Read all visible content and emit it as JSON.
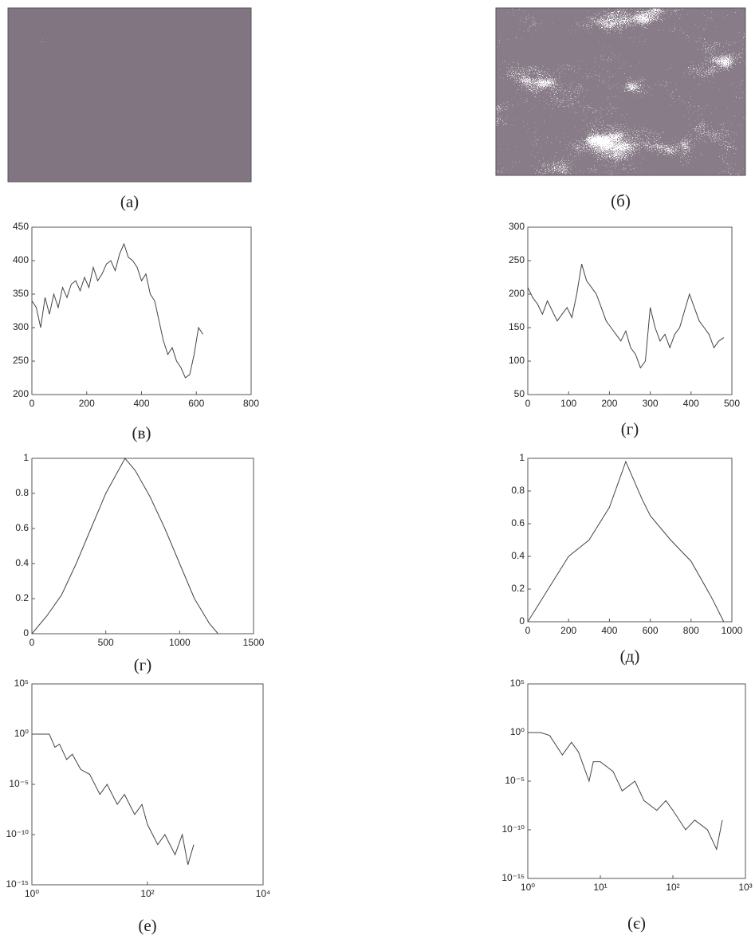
{
  "chart_data": [
    {
      "type": "image",
      "caption": "(а)"
    },
    {
      "type": "image",
      "caption": "(б)"
    },
    {
      "type": "line",
      "caption": "(в)",
      "color": "#444",
      "x": [
        0,
        16,
        32,
        48,
        64,
        80,
        96,
        112,
        128,
        144,
        160,
        176,
        192,
        208,
        224,
        240,
        256,
        272,
        288,
        304,
        320,
        336,
        352,
        368,
        384,
        400,
        416,
        432,
        448,
        464,
        480,
        496,
        512,
        528,
        544,
        560,
        576,
        592,
        608,
        624
      ],
      "values": [
        340,
        330,
        300,
        345,
        320,
        350,
        330,
        360,
        345,
        365,
        370,
        355,
        375,
        360,
        390,
        370,
        380,
        395,
        400,
        385,
        410,
        425,
        405,
        400,
        390,
        370,
        380,
        350,
        340,
        310,
        280,
        260,
        270,
        250,
        240,
        225,
        230,
        260,
        300,
        290
      ],
      "xlim": [
        0,
        800
      ],
      "xticks": [
        0,
        200,
        400,
        600,
        800
      ],
      "ylim": [
        200,
        450
      ],
      "yticks": [
        200,
        250,
        300,
        350,
        400,
        450
      ]
    },
    {
      "type": "line",
      "caption": "(г)",
      "color": "#444",
      "x": [
        0,
        12,
        24,
        36,
        48,
        60,
        72,
        84,
        96,
        108,
        120,
        132,
        144,
        156,
        168,
        180,
        192,
        204,
        216,
        228,
        240,
        252,
        264,
        276,
        288,
        300,
        312,
        324,
        336,
        348,
        360,
        372,
        384,
        396,
        408,
        420,
        432,
        444,
        456,
        468,
        480
      ],
      "values": [
        210,
        195,
        185,
        170,
        190,
        175,
        160,
        170,
        180,
        165,
        200,
        245,
        220,
        210,
        200,
        180,
        160,
        150,
        140,
        130,
        145,
        120,
        110,
        90,
        100,
        180,
        150,
        130,
        140,
        120,
        140,
        150,
        175,
        200,
        180,
        160,
        150,
        140,
        120,
        130,
        135
      ],
      "xlim": [
        0,
        500
      ],
      "xticks": [
        0,
        100,
        200,
        300,
        400,
        500
      ],
      "ylim": [
        50,
        300
      ],
      "yticks": [
        50,
        100,
        150,
        200,
        250,
        300
      ]
    },
    {
      "type": "line",
      "caption": "(г)",
      "color": "#444",
      "x": [
        0,
        100,
        200,
        300,
        400,
        500,
        630,
        700,
        800,
        900,
        1000,
        1100,
        1200,
        1260
      ],
      "values": [
        0,
        0.1,
        0.22,
        0.4,
        0.6,
        0.8,
        1,
        0.93,
        0.78,
        0.6,
        0.4,
        0.2,
        0.06,
        0
      ],
      "xlim": [
        0,
        1500
      ],
      "xticks": [
        0,
        500,
        1000,
        1500
      ],
      "ylim": [
        0,
        1
      ],
      "yticks": [
        0,
        0.2,
        0.4,
        0.6,
        0.8,
        1
      ]
    },
    {
      "type": "line",
      "caption": "(д)",
      "color": "#444",
      "x": [
        0,
        100,
        200,
        300,
        400,
        480,
        560,
        600,
        700,
        800,
        900,
        960
      ],
      "values": [
        0,
        0.2,
        0.4,
        0.5,
        0.7,
        0.98,
        0.75,
        0.65,
        0.5,
        0.37,
        0.15,
        0
      ],
      "xlim": [
        0,
        1000
      ],
      "xticks": [
        0,
        200,
        400,
        600,
        800,
        1000
      ],
      "ylim": [
        0,
        1
      ],
      "yticks": [
        0,
        0.2,
        0.4,
        0.6,
        0.8,
        1
      ]
    },
    {
      "type": "line",
      "caption": "(е)",
      "color": "#444",
      "log_x": true,
      "log_y": true,
      "x": [
        1,
        1.5,
        2,
        2.5,
        3,
        4,
        5,
        7,
        10,
        15,
        20,
        30,
        40,
        60,
        80,
        100,
        150,
        200,
        300,
        400,
        500,
        630
      ],
      "values": [
        1,
        1,
        1,
        0.05,
        0.1,
        0.003,
        0.01,
        0.0003,
        0.0001,
        1e-06,
        1e-05,
        1e-07,
        1e-06,
        1e-08,
        1e-07,
        1e-09,
        1e-11,
        1e-10,
        1e-12,
        1e-10,
        1e-13,
        1e-11
      ],
      "xlim": [
        1,
        10000
      ],
      "xticks": [
        {
          "value": 1,
          "label": "10⁰"
        },
        {
          "value": 100,
          "label": "10²"
        },
        {
          "value": 10000,
          "label": "10⁴"
        }
      ],
      "ylim": [
        1e-15,
        100000
      ],
      "yticks": [
        {
          "value": 1e-15,
          "label": "10⁻¹⁵"
        },
        {
          "value": 1e-10,
          "label": "10⁻¹⁰"
        },
        {
          "value": 1e-05,
          "label": "10⁻⁵"
        },
        {
          "value": 1,
          "label": "10⁰"
        },
        {
          "value": 100000,
          "label": "10⁵"
        }
      ]
    },
    {
      "type": "line",
      "caption": "(є)",
      "color": "#444",
      "log_x": true,
      "log_y": true,
      "x": [
        1,
        1.5,
        2,
        3,
        4,
        5,
        7,
        8,
        10,
        15,
        20,
        30,
        40,
        60,
        80,
        100,
        150,
        200,
        300,
        400,
        480
      ],
      "values": [
        1,
        1,
        0.5,
        0.005,
        0.1,
        0.01,
        1e-05,
        0.001,
        0.001,
        0.0001,
        1e-06,
        1e-05,
        1e-07,
        1e-08,
        1e-07,
        1e-08,
        1e-10,
        1e-09,
        1e-10,
        1e-12,
        1e-09
      ],
      "xlim": [
        1,
        1000
      ],
      "xticks": [
        {
          "value": 1,
          "label": "10⁰"
        },
        {
          "value": 10,
          "label": "10¹"
        },
        {
          "value": 100,
          "label": "10²"
        },
        {
          "value": 1000,
          "label": "10³"
        }
      ],
      "ylim": [
        1e-15,
        100000
      ],
      "yticks": [
        {
          "value": 1e-15,
          "label": "10⁻¹⁵"
        },
        {
          "value": 1e-10,
          "label": "10⁻¹⁰"
        },
        {
          "value": 1e-05,
          "label": "10⁻⁵"
        },
        {
          "value": 1,
          "label": "10⁰"
        },
        {
          "value": 100000,
          "label": "10⁵"
        }
      ]
    }
  ]
}
